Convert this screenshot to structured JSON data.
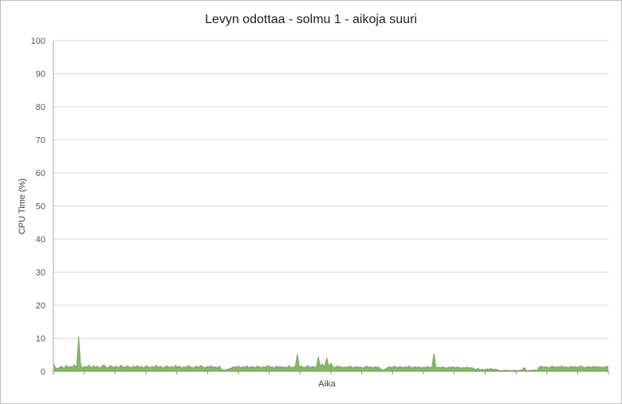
{
  "chart_data": {
    "type": "area",
    "title": "Levyn odottaa - solmu 1 - aikoja suuri",
    "xlabel": "Aika",
    "ylabel": "CPU Time (%)",
    "ylim": [
      0,
      100
    ],
    "yticks": [
      0,
      10,
      20,
      30,
      40,
      50,
      60,
      70,
      80,
      90,
      100
    ],
    "grid": true,
    "legend": "none",
    "colors": {
      "fill": "#70ad47",
      "stroke": "#5b9a3a",
      "grid": "#d9d9d9",
      "axis": "#8fb7a0"
    },
    "series": [
      {
        "values": [
          2.5,
          1.0,
          0.9,
          1.2,
          1.6,
          0.8,
          1.8,
          1.2,
          1.5,
          1.4,
          2.0,
          1.2,
          10.5,
          1.8,
          1.0,
          1.5,
          1.4,
          1.9,
          1.1,
          1.7,
          1.3,
          1.6,
          1.0,
          1.5,
          2.0,
          1.3,
          1.1,
          1.8,
          1.4,
          1.2,
          1.6,
          1.0,
          1.9,
          1.5,
          1.2,
          1.7,
          1.4,
          1.1,
          1.6,
          1.3,
          1.8,
          1.2,
          1.5,
          1.0,
          1.7,
          1.4,
          1.1,
          1.5,
          1.3,
          1.9,
          1.2,
          1.6,
          1.0,
          1.4,
          1.7,
          1.2,
          1.5,
          1.1,
          1.8,
          1.3,
          1.6,
          1.0,
          1.4,
          1.2,
          1.7,
          1.5,
          1.1,
          1.3,
          1.6,
          1.2,
          1.8,
          1.4,
          1.0,
          1.5,
          1.3,
          1.7,
          1.2,
          1.4,
          1.1,
          1.6,
          0.6,
          0.4,
          0.5,
          0.7,
          0.8,
          1.2,
          1.5,
          1.3,
          1.6,
          1.1,
          1.4,
          1.2,
          1.7,
          1.0,
          1.5,
          1.3,
          1.2,
          1.6,
          1.4,
          1.1,
          1.5,
          1.3,
          1.8,
          1.2,
          1.4,
          1.0,
          1.6,
          1.3,
          1.5,
          1.2,
          1.4,
          1.1,
          1.7,
          1.3,
          1.2,
          1.5,
          5.3,
          1.4,
          1.6,
          1.2,
          1.3,
          1.8,
          1.1,
          1.5,
          1.4,
          1.2,
          4.5,
          1.6,
          2.2,
          1.3,
          4.2,
          1.5,
          2.5,
          1.4,
          1.2,
          1.7,
          1.3,
          1.5,
          1.1,
          1.4,
          1.2,
          1.6,
          1.3,
          1.1,
          1.5,
          1.2,
          1.4,
          1.0,
          1.3,
          1.6,
          1.2,
          1.4,
          1.1,
          1.5,
          1.3,
          1.2,
          0.6,
          0.4,
          0.8,
          1.2,
          1.4,
          1.1,
          1.6,
          1.3,
          1.2,
          1.5,
          1.1,
          1.4,
          1.2,
          1.6,
          1.3,
          1.1,
          1.5,
          1.2,
          1.4,
          1.0,
          1.3,
          1.2,
          1.5,
          1.1,
          1.4,
          5.5,
          1.2,
          1.3,
          1.1,
          1.4,
          1.2,
          1.0,
          1.3,
          1.2,
          1.4,
          1.1,
          1.3,
          1.2,
          1.0,
          1.2,
          1.1,
          1.3,
          1.0,
          1.2,
          0.8,
          0.6,
          0.9,
          0.5,
          0.7,
          0.4,
          0.8,
          0.6,
          0.9,
          0.5,
          0.7,
          0.6,
          0.3,
          0.2,
          0.3,
          0.4,
          0.2,
          0.3,
          0.2,
          0.4,
          0.3,
          0.2,
          0.4,
          0.5,
          1.2,
          0.3,
          0.2,
          0.4,
          0.3,
          0.5,
          0.2,
          1.3,
          1.6,
          1.2,
          1.5,
          1.3,
          1.1,
          1.6,
          1.4,
          1.2,
          1.5,
          1.3,
          1.7,
          1.2,
          1.4,
          1.1,
          1.6,
          1.3,
          1.5,
          1.2,
          1.4,
          1.6,
          1.3,
          1.1,
          1.5,
          1.4,
          1.2,
          1.6,
          1.3,
          1.5,
          1.2,
          1.4,
          1.1,
          1.6,
          1.3
        ]
      }
    ]
  }
}
